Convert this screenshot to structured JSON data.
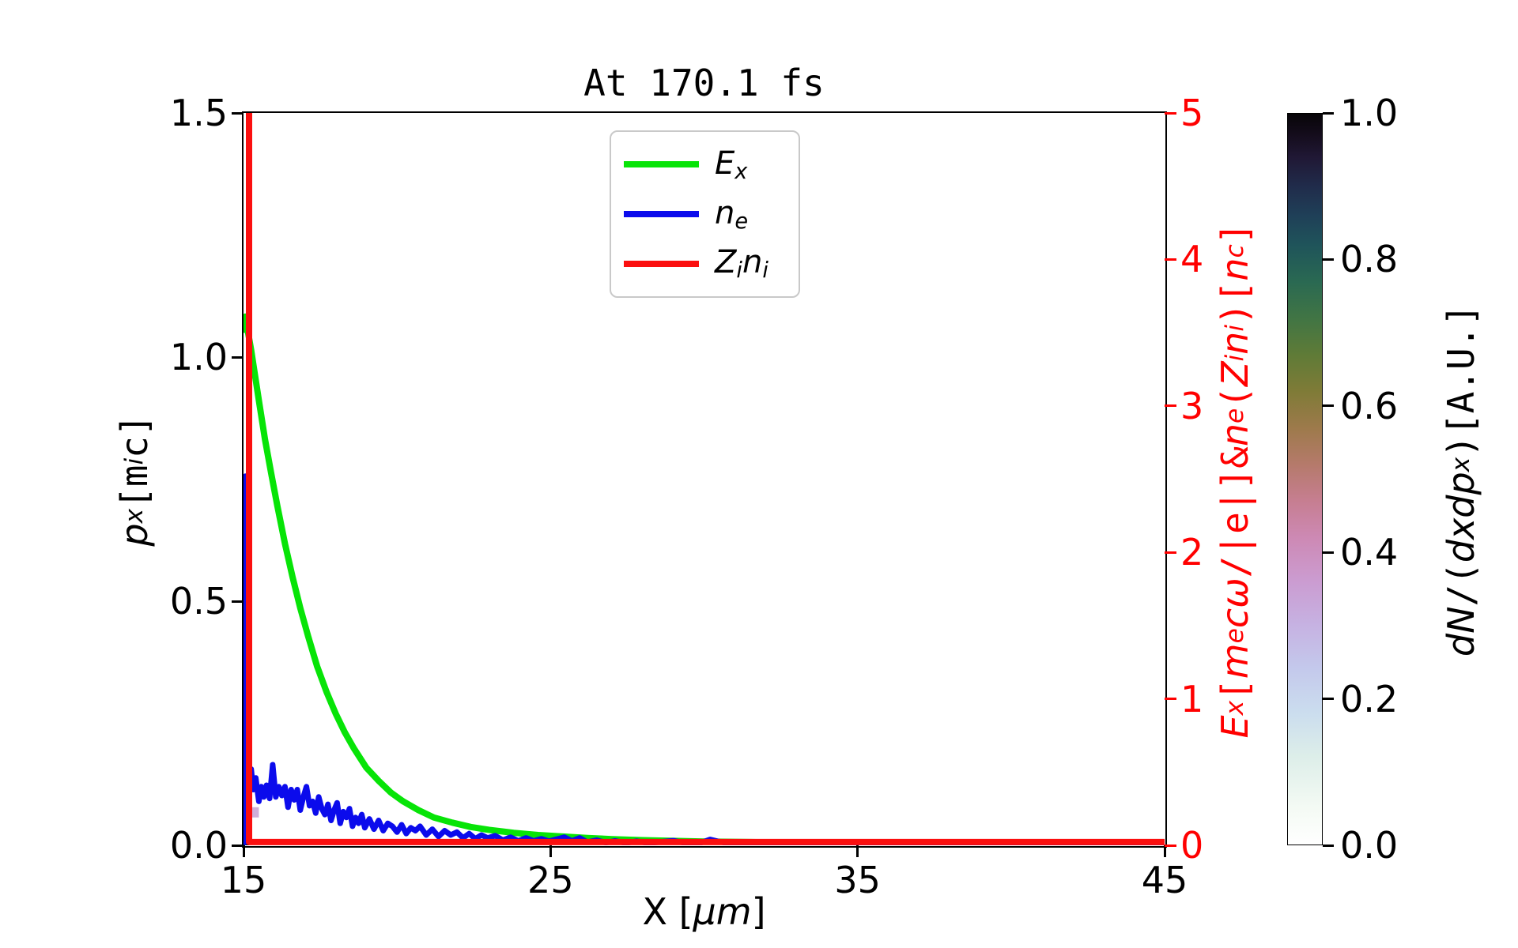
{
  "figure": {
    "title": "At 170.1 fs",
    "background_color": "#ffffff"
  },
  "axes": {
    "x": {
      "label_plain": "X [μm]",
      "label_parts": [
        [
          "X [",
          ""
        ],
        [
          "μm",
          "it"
        ],
        [
          "]",
          ""
        ]
      ],
      "range": [
        15,
        45
      ],
      "ticks": [
        "15",
        "25",
        "35",
        "45"
      ],
      "color": "#000000"
    },
    "y_left": {
      "label_plain": "p_x [m_i c]",
      "label_parts": [
        [
          "p",
          "it"
        ],
        [
          "x",
          "itsub"
        ],
        [
          " ",
          ""
        ],
        [
          "[m",
          "mono"
        ],
        [
          "i",
          "itsub"
        ],
        [
          "c",
          "mono"
        ],
        [
          "]",
          "mono"
        ]
      ],
      "range": [
        0,
        1.5
      ],
      "ticks": [
        "0.0",
        "0.5",
        "1.0",
        "1.5"
      ],
      "color": "#000000"
    },
    "y_right": {
      "label_plain": "E_x [m_e cω/|e|] & n_e(Z_i n_i) [n_c]",
      "label_parts": [
        [
          "E",
          "it"
        ],
        [
          "x",
          "itsub"
        ],
        [
          " ",
          ""
        ],
        [
          "[",
          "mono"
        ],
        [
          "m",
          "it"
        ],
        [
          "e",
          "itsub"
        ],
        [
          "c",
          "it"
        ],
        [
          "ω",
          "it"
        ],
        [
          "/|",
          "mono"
        ],
        [
          "e",
          "mono"
        ],
        [
          "|]",
          "mono"
        ],
        [
          " & ",
          "mono"
        ],
        [
          "n",
          "it"
        ],
        [
          "e",
          "itsub"
        ],
        [
          "(",
          "mono"
        ],
        [
          "Z",
          "it"
        ],
        [
          "i",
          "itsub"
        ],
        [
          "n",
          "it"
        ],
        [
          "i",
          "itsub"
        ],
        [
          ")",
          "mono"
        ],
        [
          " [",
          "mono"
        ],
        [
          "n",
          "it"
        ],
        [
          "c",
          "itsub"
        ],
        [
          "]",
          "mono"
        ]
      ],
      "range": [
        0,
        5
      ],
      "ticks": [
        "0",
        "1",
        "2",
        "3",
        "4",
        "5"
      ],
      "color": "#ff0000"
    }
  },
  "legend": {
    "items": [
      {
        "label_plain": "E_x",
        "label_parts": [
          [
            "E",
            "it"
          ],
          [
            "x",
            "itsub"
          ]
        ],
        "color": "#07e407"
      },
      {
        "label_plain": "n_e",
        "label_parts": [
          [
            "n",
            "it"
          ],
          [
            "e",
            "itsub"
          ]
        ],
        "color": "#0b0bec"
      },
      {
        "label_plain": "Z_i n_i",
        "label_parts": [
          [
            "Z",
            "it"
          ],
          [
            "i",
            "itsub"
          ],
          [
            "n",
            "it"
          ],
          [
            "i",
            "itsub"
          ]
        ],
        "color": "#fb0f0f"
      }
    ]
  },
  "colorbar": {
    "label_plain": "dN/(dxdp_x) [A.U.]",
    "label_parts": [
      [
        "dN",
        "it"
      ],
      [
        "/(",
        "mono"
      ],
      [
        "dxdp",
        "it"
      ],
      [
        "x",
        "itsub"
      ],
      [
        ")",
        "mono"
      ],
      [
        " ",
        ""
      ],
      [
        "[A.U.]",
        "mono"
      ]
    ],
    "range": [
      0,
      1
    ],
    "ticks": [
      "0.0",
      "0.2",
      "0.4",
      "0.6",
      "0.8",
      "1.0"
    ],
    "gradient_stops": [
      [
        0.0,
        "#ffffff"
      ],
      [
        0.05,
        "#f4faf4"
      ],
      [
        0.12,
        "#ddeee9"
      ],
      [
        0.18,
        "#cbddee"
      ],
      [
        0.24,
        "#c4c9ec"
      ],
      [
        0.3,
        "#c6b2e2"
      ],
      [
        0.36,
        "#cb9cd1"
      ],
      [
        0.42,
        "#cd89b4"
      ],
      [
        0.47,
        "#c67e91"
      ],
      [
        0.52,
        "#b57a6b"
      ],
      [
        0.57,
        "#9d7a4b"
      ],
      [
        0.62,
        "#7f7b37"
      ],
      [
        0.67,
        "#5f7b37"
      ],
      [
        0.72,
        "#417544"
      ],
      [
        0.77,
        "#2a6952"
      ],
      [
        0.82,
        "#1f545a"
      ],
      [
        0.86,
        "#1f4058"
      ],
      [
        0.9,
        "#202c4b"
      ],
      [
        0.94,
        "#201835"
      ],
      [
        0.97,
        "#150d1d"
      ],
      [
        1.0,
        "#070508"
      ]
    ]
  },
  "chart_data": {
    "type": "line",
    "title": "At 170.1 fs",
    "xlabel": "X [μm]",
    "xlim": [
      15,
      45
    ],
    "x_ticks": [
      15,
      25,
      35,
      45
    ],
    "ylabel_left": "p_x [m_i c]",
    "ylim_left": [
      0,
      1.5
    ],
    "ylabel_right": "E_x [m_e cω/|e|] & n_e(Z_i n_i) [n_c]",
    "ylim_right": [
      0,
      5
    ],
    "grid": false,
    "legend_position": "upper center inside",
    "series": [
      {
        "name": "E_x",
        "axis": "right",
        "color": "#07e407",
        "width": 8,
        "points": [
          [
            15.03,
            3.52
          ],
          [
            15.06,
            3.61
          ],
          [
            15.15,
            3.5
          ],
          [
            15.25,
            3.38
          ],
          [
            15.38,
            3.2
          ],
          [
            15.52,
            3.01
          ],
          [
            15.7,
            2.77
          ],
          [
            15.9,
            2.54
          ],
          [
            16.1,
            2.32
          ],
          [
            16.35,
            2.06
          ],
          [
            16.6,
            1.83
          ],
          [
            16.85,
            1.62
          ],
          [
            17.1,
            1.43
          ],
          [
            17.4,
            1.22
          ],
          [
            17.7,
            1.05
          ],
          [
            18.0,
            0.9
          ],
          [
            18.3,
            0.77
          ],
          [
            18.6,
            0.66
          ],
          [
            19.0,
            0.53
          ],
          [
            19.4,
            0.44
          ],
          [
            19.8,
            0.36
          ],
          [
            20.2,
            0.3
          ],
          [
            20.7,
            0.24
          ],
          [
            21.2,
            0.19
          ],
          [
            21.8,
            0.155
          ],
          [
            22.4,
            0.125
          ],
          [
            23.0,
            0.105
          ],
          [
            23.8,
            0.085
          ],
          [
            24.6,
            0.07
          ],
          [
            25.4,
            0.06
          ],
          [
            26.2,
            0.05
          ],
          [
            27.0,
            0.042
          ],
          [
            28.0,
            0.035
          ],
          [
            29.0,
            0.03
          ],
          [
            30.0,
            0.026
          ],
          [
            31.5,
            0.022
          ],
          [
            33.0,
            0.018
          ],
          [
            35.0,
            0.015
          ],
          [
            38.0,
            0.012
          ],
          [
            41.0,
            0.01
          ],
          [
            45.0,
            0.01
          ]
        ]
      },
      {
        "name": "n_e",
        "axis": "right",
        "color": "#0b0bec",
        "width": 7,
        "points": [
          [
            15.04,
            0.02
          ],
          [
            15.05,
            0.8
          ],
          [
            15.06,
            2.52
          ],
          [
            15.08,
            2.3
          ],
          [
            15.09,
            1.4
          ],
          [
            15.11,
            0.75
          ],
          [
            15.14,
            0.55
          ],
          [
            15.18,
            0.48
          ],
          [
            15.25,
            0.52
          ],
          [
            15.32,
            0.38
          ],
          [
            15.4,
            0.46
          ],
          [
            15.5,
            0.3
          ],
          [
            15.58,
            0.4
          ],
          [
            15.66,
            0.33
          ],
          [
            15.75,
            0.41
          ],
          [
            15.85,
            0.32
          ],
          [
            15.95,
            0.55
          ],
          [
            16.05,
            0.33
          ],
          [
            16.15,
            0.4
          ],
          [
            16.25,
            0.34
          ],
          [
            16.35,
            0.4
          ],
          [
            16.45,
            0.26
          ],
          [
            16.55,
            0.38
          ],
          [
            16.65,
            0.31
          ],
          [
            16.75,
            0.38
          ],
          [
            16.85,
            0.24
          ],
          [
            16.95,
            0.33
          ],
          [
            17.05,
            0.4
          ],
          [
            17.15,
            0.27
          ],
          [
            17.25,
            0.3
          ],
          [
            17.35,
            0.22
          ],
          [
            17.45,
            0.33
          ],
          [
            17.55,
            0.25
          ],
          [
            17.65,
            0.21
          ],
          [
            17.75,
            0.28
          ],
          [
            17.85,
            0.17
          ],
          [
            17.95,
            0.24
          ],
          [
            18.05,
            0.29
          ],
          [
            18.15,
            0.15
          ],
          [
            18.25,
            0.23
          ],
          [
            18.35,
            0.19
          ],
          [
            18.45,
            0.25
          ],
          [
            18.55,
            0.13
          ],
          [
            18.65,
            0.19
          ],
          [
            18.75,
            0.15
          ],
          [
            18.85,
            0.21
          ],
          [
            18.95,
            0.12
          ],
          [
            19.1,
            0.18
          ],
          [
            19.25,
            0.11
          ],
          [
            19.4,
            0.17
          ],
          [
            19.55,
            0.1
          ],
          [
            19.7,
            0.15
          ],
          [
            19.85,
            0.13
          ],
          [
            20.0,
            0.09
          ],
          [
            20.15,
            0.14
          ],
          [
            20.3,
            0.08
          ],
          [
            20.45,
            0.12
          ],
          [
            20.6,
            0.1
          ],
          [
            20.75,
            0.13
          ],
          [
            20.95,
            0.07
          ],
          [
            21.15,
            0.11
          ],
          [
            21.35,
            0.06
          ],
          [
            21.55,
            0.1
          ],
          [
            21.75,
            0.07
          ],
          [
            21.95,
            0.09
          ],
          [
            22.15,
            0.05
          ],
          [
            22.35,
            0.08
          ],
          [
            22.55,
            0.045
          ],
          [
            22.75,
            0.07
          ],
          [
            22.95,
            0.05
          ],
          [
            23.2,
            0.065
          ],
          [
            23.45,
            0.035
          ],
          [
            23.7,
            0.055
          ],
          [
            23.95,
            0.03
          ],
          [
            24.2,
            0.05
          ],
          [
            24.45,
            0.03
          ],
          [
            24.7,
            0.045
          ],
          [
            24.95,
            0.028
          ],
          [
            25.2,
            0.042
          ],
          [
            25.45,
            0.055
          ],
          [
            25.7,
            0.03
          ],
          [
            25.95,
            0.05
          ],
          [
            26.2,
            0.022
          ],
          [
            26.5,
            0.035
          ],
          [
            26.8,
            0.018
          ],
          [
            27.1,
            0.03
          ],
          [
            27.45,
            0.015
          ],
          [
            27.8,
            0.028
          ],
          [
            28.2,
            0.014
          ],
          [
            28.6,
            0.024
          ],
          [
            29.0,
            0.032
          ],
          [
            29.4,
            0.014
          ],
          [
            29.8,
            0.01
          ],
          [
            30.2,
            0.04
          ],
          [
            30.5,
            0.025
          ],
          [
            30.8,
            0.012
          ],
          [
            31.2,
            0.006
          ],
          [
            32.0,
            0.005
          ],
          [
            34.0,
            0.004
          ],
          [
            37.0,
            0.004
          ],
          [
            41.0,
            0.004
          ],
          [
            45.0,
            0.004
          ]
        ]
      },
      {
        "name": "Z_i n_i",
        "axis": "right",
        "color": "#fb0f0f",
        "width": 8,
        "points": [
          [
            15.18,
            5.0
          ],
          [
            15.18,
            0.022
          ],
          [
            45.0,
            0.022
          ]
        ]
      }
    ],
    "histogram_2d": {
      "colormap_label": "dN/(dxdp_x) [A.U.]",
      "visible_cells": [
        {
          "x0": 15.05,
          "x1": 15.5,
          "p0": 0.057,
          "p1": 0.078,
          "value": 0.32,
          "color": "#cfaed9"
        },
        {
          "x0": 15.0,
          "x1": 15.18,
          "p0": 0.0,
          "p1": 0.075,
          "value": 1.0,
          "color": "#0d080c"
        }
      ]
    }
  }
}
